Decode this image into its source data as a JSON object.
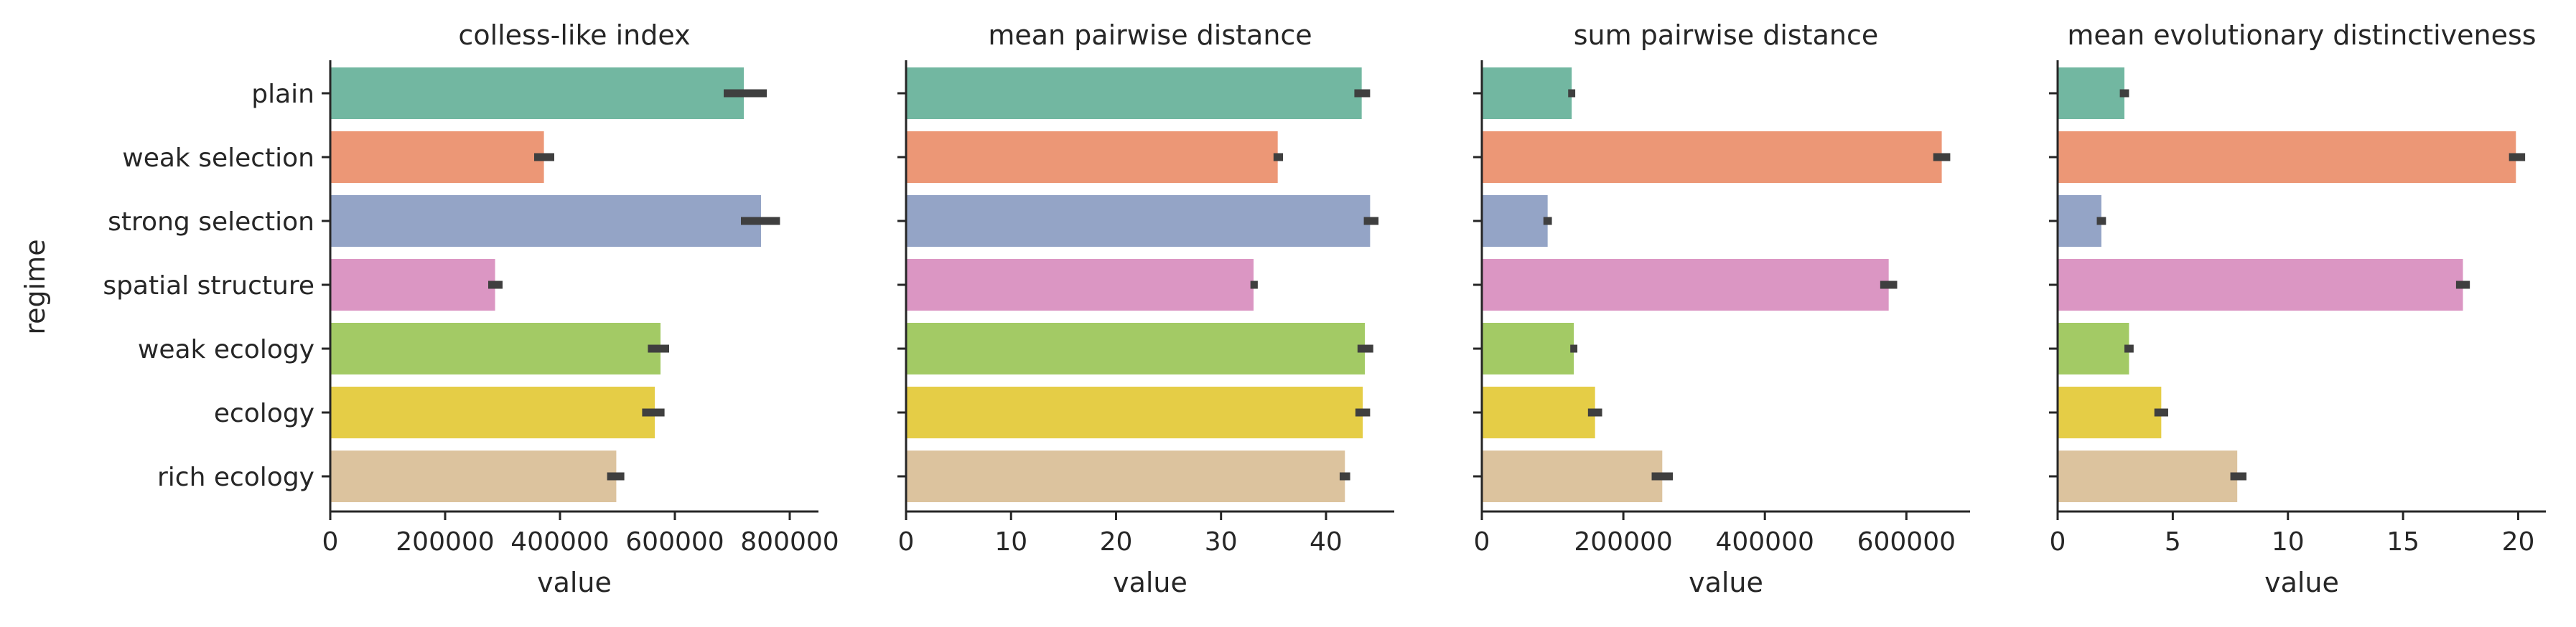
{
  "categories": [
    "plain",
    "weak selection",
    "strong selection",
    "spatial structure",
    "weak ecology",
    "ecology",
    "rich ecology"
  ],
  "colors": [
    "#72b7a1",
    "#ec9776",
    "#94a4c6",
    "#db96c3",
    "#a3ca65",
    "#e5cd46",
    "#dcc39e"
  ],
  "y_axis_label": "regime",
  "chart_data": [
    {
      "type": "bar",
      "orientation": "horizontal",
      "title": "colless-like index",
      "xlabel": "value",
      "ylabel": "regime",
      "xlim": [
        0,
        850000
      ],
      "xticks": [
        0,
        200000,
        400000,
        600000,
        800000
      ],
      "xtick_labels": [
        "0",
        "200000",
        "400000",
        "600000",
        "800000"
      ],
      "categories": [
        "plain",
        "weak selection",
        "strong selection",
        "spatial structure",
        "weak ecology",
        "ecology",
        "rich ecology"
      ],
      "values": [
        720000,
        372000,
        750000,
        287000,
        575000,
        565000,
        498000
      ],
      "ci_low": [
        685000,
        355000,
        715000,
        275000,
        553000,
        543000,
        482000
      ],
      "ci_high": [
        760000,
        390000,
        783000,
        300000,
        590000,
        582000,
        512000
      ]
    },
    {
      "type": "bar",
      "orientation": "horizontal",
      "title": "mean pairwise distance",
      "xlabel": "value",
      "ylabel": "",
      "xlim": [
        0,
        46.5
      ],
      "xticks": [
        0,
        10,
        20,
        30,
        40
      ],
      "xtick_labels": [
        "0",
        "10",
        "20",
        "30",
        "40"
      ],
      "categories": [
        "plain",
        "weak selection",
        "strong selection",
        "spatial structure",
        "weak ecology",
        "ecology",
        "rich ecology"
      ],
      "values": [
        43.4,
        35.4,
        44.2,
        33.1,
        43.7,
        43.5,
        41.8
      ],
      "ci_low": [
        42.7,
        35.0,
        43.6,
        32.8,
        43.0,
        42.8,
        41.3
      ],
      "ci_high": [
        44.2,
        35.9,
        45.0,
        33.5,
        44.5,
        44.2,
        42.3
      ]
    },
    {
      "type": "bar",
      "orientation": "horizontal",
      "title": "sum pairwise distance",
      "xlabel": "value",
      "ylabel": "",
      "xlim": [
        0,
        690000
      ],
      "xticks": [
        0,
        200000,
        400000,
        600000
      ],
      "xtick_labels": [
        "0",
        "200000",
        "400000",
        "600000"
      ],
      "categories": [
        "plain",
        "weak selection",
        "strong selection",
        "spatial structure",
        "weak ecology",
        "ecology",
        "rich ecology"
      ],
      "values": [
        127000,
        650000,
        93000,
        575000,
        130000,
        160000,
        255000
      ],
      "ci_low": [
        122000,
        638000,
        87000,
        563000,
        125000,
        150000,
        240000
      ],
      "ci_high": [
        132000,
        662000,
        99000,
        587000,
        135000,
        170000,
        270000
      ]
    },
    {
      "type": "bar",
      "orientation": "horizontal",
      "title": "mean evolutionary distinctiveness",
      "xlabel": "value",
      "ylabel": "",
      "xlim": [
        0,
        21.2
      ],
      "xticks": [
        0,
        5,
        10,
        15,
        20
      ],
      "xtick_labels": [
        "0",
        "5",
        "10",
        "15",
        "20"
      ],
      "categories": [
        "plain",
        "weak selection",
        "strong selection",
        "spatial structure",
        "weak ecology",
        "ecology",
        "rich ecology"
      ],
      "values": [
        2.9,
        19.9,
        1.9,
        17.6,
        3.1,
        4.5,
        7.8
      ],
      "ci_low": [
        2.7,
        19.6,
        1.7,
        17.3,
        2.9,
        4.2,
        7.5
      ],
      "ci_high": [
        3.1,
        20.3,
        2.1,
        17.9,
        3.3,
        4.8,
        8.2
      ]
    }
  ]
}
